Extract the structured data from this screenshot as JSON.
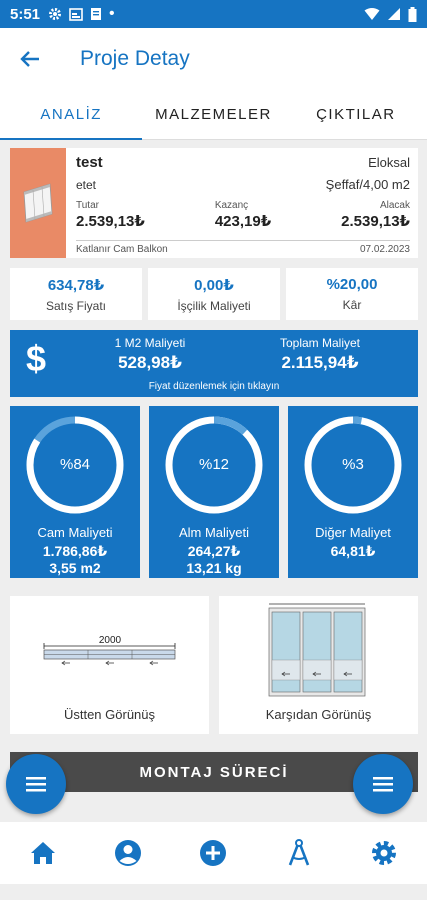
{
  "status_bar": {
    "time": "5:51"
  },
  "header": {
    "title": "Proje Detay"
  },
  "tabs": [
    {
      "label": "ANALİZ",
      "active": true
    },
    {
      "label": "MALZEMELER",
      "active": false
    },
    {
      "label": "ÇIKTILAR",
      "active": false
    }
  ],
  "product": {
    "name": "test",
    "brand": "Eloksal",
    "subtitle": "etet",
    "glass": "Şeffaf/4,00 m2",
    "amounts": [
      {
        "label": "Tutar",
        "value": "2.539,13₺"
      },
      {
        "label": "Kazanç",
        "value": "423,19₺"
      },
      {
        "label": "Alacak",
        "value": "2.539,13₺"
      }
    ],
    "system": "Katlanır Cam Balkon",
    "date": "07.02.2023"
  },
  "summary": [
    {
      "value": "634,78₺",
      "label": "Satış Fiyatı"
    },
    {
      "value": "0,00₺",
      "label": "İşçilik Maliyeti"
    },
    {
      "value": "%20,00",
      "label": "Kâr"
    }
  ],
  "cost": {
    "symbol": "$",
    "m2_label": "1 M2 Maliyeti",
    "m2_value": "528,98₺",
    "total_label": "Toplam Maliyet",
    "total_value": "2.115,94₺",
    "hint": "Fiyat düzenlemek için tıklayın"
  },
  "metrics": [
    {
      "percent_label": "%84",
      "percent": 84,
      "title": "Cam Maliyeti",
      "value": "1.786,86₺",
      "sub": "3,55 m2"
    },
    {
      "percent_label": "%12",
      "percent": 12,
      "title": "Alm Maliyeti",
      "value": "264,27₺",
      "sub": "13,21 kg"
    },
    {
      "percent_label": "%3",
      "percent": 3,
      "title": "Diğer Maliyet",
      "value": "64,81₺",
      "sub": ""
    }
  ],
  "views": {
    "top": {
      "label": "Üstten Görünüş",
      "dimension": "2000"
    },
    "front": {
      "label": "Karşıdan Görünüş"
    }
  },
  "montaj": {
    "label": "MONTAJ SÜRECİ"
  },
  "colors": {
    "primary": "#1674c2",
    "thumb": "#e98a66",
    "dark_button": "#4a4a4a"
  },
  "nav": [
    {
      "icon": "home-icon"
    },
    {
      "icon": "account-icon"
    },
    {
      "icon": "add-circle-icon"
    },
    {
      "icon": "compass-icon"
    },
    {
      "icon": "settings-icon"
    }
  ]
}
